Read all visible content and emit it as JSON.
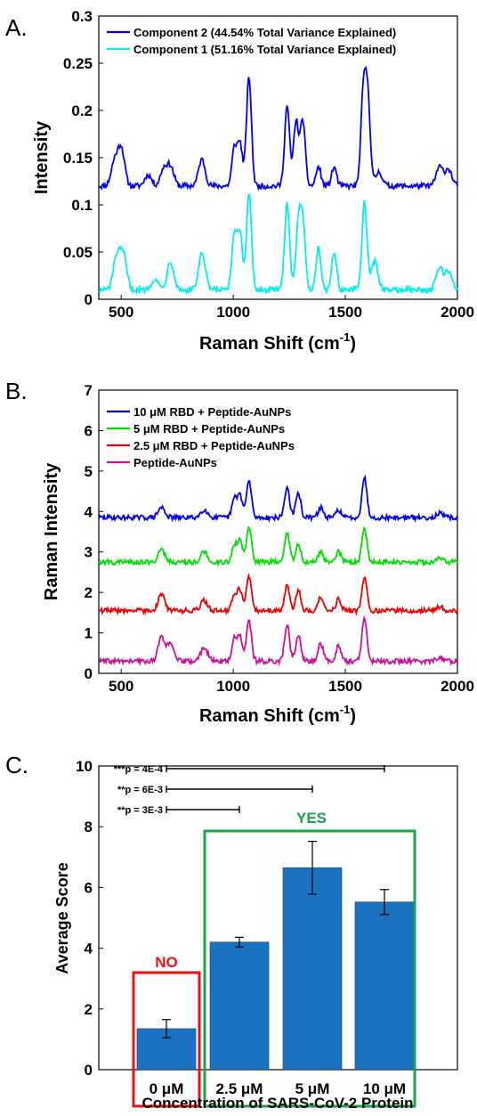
{
  "chart_data": [
    {
      "panel": "A.",
      "type": "line",
      "xlabel": "Raman Shift (cm",
      "xlabel_sup": "-1",
      "xlabel_close": ")",
      "ylabel": "Intensity",
      "xlim": [
        400,
        2000
      ],
      "ylim": [
        0,
        0.3
      ],
      "xticks": [
        500,
        1000,
        1500,
        2000
      ],
      "yticks": [
        0,
        0.05,
        0.1,
        0.15,
        0.2,
        0.25,
        0.3
      ],
      "ytick_labels": [
        "0",
        "0.05",
        "0.1",
        "0.15",
        "0.2",
        "0.25",
        "0.3"
      ],
      "legend": "top-left",
      "grid": false,
      "series": [
        {
          "name": "Component 2 (44.54% Total Variance Explained)",
          "color": "#0000ee",
          "baseline": 0.12,
          "peaks": [
            [
              470,
              0.145
            ],
            [
              500,
              0.16
            ],
            [
              620,
              0.132
            ],
            [
              690,
              0.138
            ],
            [
              720,
              0.14
            ],
            [
              860,
              0.148
            ],
            [
              1005,
              0.16
            ],
            [
              1030,
              0.165
            ],
            [
              1070,
              0.235
            ],
            [
              1240,
              0.205
            ],
            [
              1280,
              0.188
            ],
            [
              1310,
              0.19
            ],
            [
              1380,
              0.14
            ],
            [
              1450,
              0.14
            ],
            [
              1580,
              0.215
            ],
            [
              1600,
              0.212
            ],
            [
              1650,
              0.135
            ],
            [
              1920,
              0.14
            ],
            [
              1960,
              0.138
            ]
          ]
        },
        {
          "name": "Component 1 (51.16% Total Variance Explained)",
          "color": "#00eeee",
          "baseline": 0.01,
          "peaks": [
            [
              480,
              0.045
            ],
            [
              510,
              0.045
            ],
            [
              650,
              0.022
            ],
            [
              720,
              0.04
            ],
            [
              860,
              0.048
            ],
            [
              1005,
              0.068
            ],
            [
              1030,
              0.07
            ],
            [
              1070,
              0.11
            ],
            [
              1240,
              0.103
            ],
            [
              1290,
              0.078
            ],
            [
              1310,
              0.08
            ],
            [
              1380,
              0.055
            ],
            [
              1450,
              0.05
            ],
            [
              1585,
              0.103
            ],
            [
              1630,
              0.04
            ],
            [
              1920,
              0.033
            ],
            [
              1960,
              0.03
            ]
          ]
        }
      ]
    },
    {
      "panel": "B.",
      "type": "line",
      "xlabel": "Raman Shift (cm",
      "xlabel_sup": "-1",
      "xlabel_close": ")",
      "ylabel": "Raman Intensity",
      "xlim": [
        400,
        2000
      ],
      "ylim": [
        0,
        7
      ],
      "xticks": [
        500,
        1000,
        1500,
        2000
      ],
      "yticks": [
        0,
        1,
        2,
        3,
        4,
        5,
        6,
        7
      ],
      "ytick_labels": [
        "0",
        "1",
        "2",
        "3",
        "4",
        "5",
        "6",
        "7"
      ],
      "legend": "top-left",
      "grid": false,
      "series": [
        {
          "name": "10 μM RBD + Peptide-AuNPs",
          "color": "#0000ee",
          "baseline": 3.85,
          "peaks": [
            [
              680,
              4.1
            ],
            [
              870,
              4.05
            ],
            [
              1005,
              4.3
            ],
            [
              1030,
              4.4
            ],
            [
              1070,
              4.75
            ],
            [
              1240,
              4.6
            ],
            [
              1290,
              4.45
            ],
            [
              1390,
              4.1
            ],
            [
              1470,
              4.05
            ],
            [
              1585,
              4.85
            ],
            [
              1920,
              3.95
            ]
          ]
        },
        {
          "name": "5 μM RBD + Peptide-AuNPs",
          "color": "#00dd00",
          "baseline": 2.75,
          "peaks": [
            [
              680,
              3.05
            ],
            [
              870,
              3.0
            ],
            [
              1005,
              3.15
            ],
            [
              1030,
              3.3
            ],
            [
              1070,
              3.6
            ],
            [
              1240,
              3.45
            ],
            [
              1290,
              3.2
            ],
            [
              1390,
              3.0
            ],
            [
              1470,
              3.0
            ],
            [
              1585,
              3.6
            ],
            [
              1920,
              2.85
            ]
          ]
        },
        {
          "name": "2.5 μM RBD + Peptide-AuNPs",
          "color": "#ee0000",
          "baseline": 1.55,
          "peaks": [
            [
              680,
              1.95
            ],
            [
              870,
              1.8
            ],
            [
              1005,
              1.95
            ],
            [
              1030,
              2.05
            ],
            [
              1070,
              2.4
            ],
            [
              1240,
              2.2
            ],
            [
              1290,
              2.05
            ],
            [
              1390,
              1.9
            ],
            [
              1470,
              1.85
            ],
            [
              1585,
              2.35
            ],
            [
              1920,
              1.65
            ]
          ]
        },
        {
          "name": "Peptide-AuNPs",
          "color": "#cc1199",
          "baseline": 0.3,
          "peaks": [
            [
              680,
              0.9
            ],
            [
              720,
              0.7
            ],
            [
              870,
              0.65
            ],
            [
              1005,
              0.85
            ],
            [
              1030,
              0.9
            ],
            [
              1070,
              1.3
            ],
            [
              1240,
              1.2
            ],
            [
              1290,
              0.95
            ],
            [
              1390,
              0.75
            ],
            [
              1470,
              0.7
            ],
            [
              1585,
              1.35
            ],
            [
              1920,
              0.4
            ]
          ]
        }
      ]
    },
    {
      "panel": "C.",
      "type": "bar",
      "xlabel": "Concentration of SARS-CoV-2 Protein",
      "ylabel": "Average Score",
      "ylim": [
        0,
        10
      ],
      "yticks": [
        0,
        2,
        4,
        6,
        8,
        10
      ],
      "categories": [
        "0 μM",
        "2.5 μM",
        "5 μM",
        "10 μM"
      ],
      "values": [
        1.35,
        4.2,
        6.65,
        5.52
      ],
      "errors": [
        0.3,
        0.16,
        0.87,
        0.41
      ],
      "bar_color": "#1a72c0",
      "significance": [
        {
          "label": "***p = 4E-4",
          "from": 0,
          "to": 3
        },
        {
          "label": "**p = 6E-3",
          "from": 0,
          "to": 2
        },
        {
          "label": "**p = 3E-3",
          "from": 0,
          "to": 1
        }
      ],
      "groups": [
        {
          "label": "NO",
          "color": "#ee1111",
          "from": 0,
          "to": 0
        },
        {
          "label": "YES",
          "color": "#1aa34a",
          "from": 1,
          "to": 3
        }
      ]
    }
  ]
}
